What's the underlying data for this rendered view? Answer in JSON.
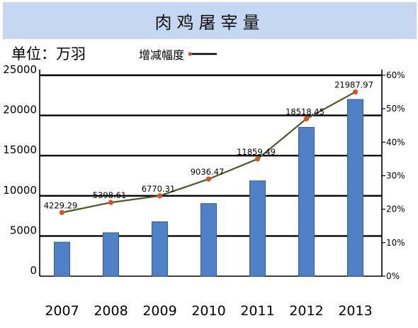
{
  "header": {
    "title": "肉鸡屠宰量",
    "unit": "单位：万羽"
  },
  "chart_data": {
    "type": "bar",
    "categories": [
      "2007",
      "2008",
      "2009",
      "2010",
      "2011",
      "2012",
      "2013"
    ],
    "series": [
      {
        "kind": "bar",
        "axis": "left",
        "values": [
          4229.29,
          5398.61,
          6770.31,
          9036.47,
          11859.49,
          18518.45,
          21987.97
        ],
        "labels": [
          "4229.29",
          "5398.61",
          "6770.31",
          "9036.47",
          "11859.49",
          "18518.45",
          "21987.97"
        ]
      },
      {
        "name": "增减幅度",
        "kind": "line",
        "axis": "right",
        "values": [
          19,
          22,
          24,
          29,
          35,
          47,
          55
        ]
      }
    ],
    "y_left": {
      "min": 0,
      "max": 25000,
      "ticks": [
        "0",
        "5000",
        "10000",
        "15000",
        "20000",
        "25000"
      ]
    },
    "y_right": {
      "min": 0,
      "max": 60,
      "ticks": [
        "0%",
        "10%",
        "20%",
        "30%",
        "40%",
        "50%",
        "60%"
      ]
    },
    "grid": true,
    "legend_position": "top",
    "colors": {
      "bar": "#4f81c7",
      "bar_edge": "#2f5c9c",
      "line": "#4a5a23",
      "marker": "#e0501e",
      "title_bg": "#c6d7f2"
    }
  }
}
